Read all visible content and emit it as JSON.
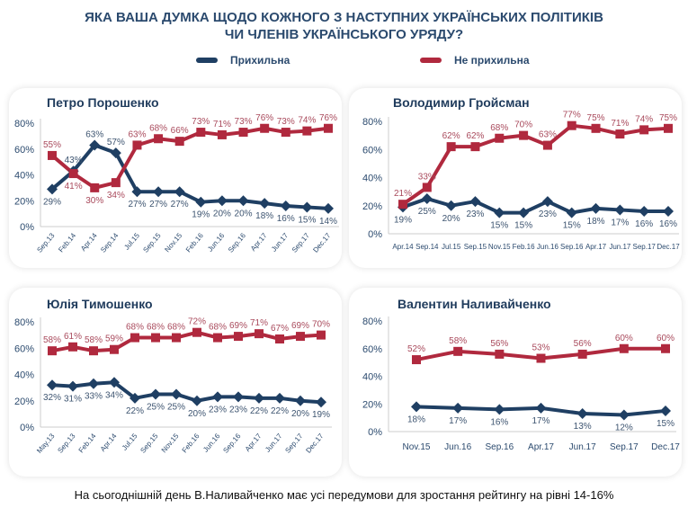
{
  "title": {
    "line1": "ЯКА ВАША ДУМКА ЩОДО КОЖНОГО З НАСТУПНИХ УКРАЇНСЬКИХ ПОЛІТИКІВ",
    "line2": "ЧИ ЧЛЕНІВ УКРАЇНСЬКОГО УРЯДУ?"
  },
  "legend": [
    {
      "label": "Прихильна",
      "color": "#1f3f63"
    },
    {
      "label": "Не прихильна",
      "color": "#b0293e"
    }
  ],
  "footer": "На сьогоднішній день В.Наливайченко має усі передумови для зростання рейтингу на рівні 14-16%",
  "chart_data": [
    {
      "type": "line",
      "title": "Петро Порошенко",
      "ylim": [
        0,
        80
      ],
      "yticks": [
        "0%",
        "20%",
        "40%",
        "60%",
        "80%"
      ],
      "grid": false,
      "categories": [
        "Sep.13",
        "Feb.14",
        "Apr.14",
        "Sep.14",
        "Jul.15",
        "Sep.15",
        "Nov.15",
        "Feb.16",
        "Jun.16",
        "Sep.16",
        "Apr.17",
        "Jun.17",
        "Sep.17",
        "Dec.17"
      ],
      "series": [
        {
          "name": "Прихильна",
          "values": [
            29,
            43,
            63,
            57,
            27,
            27,
            27,
            19,
            20,
            20,
            18,
            16,
            15,
            14
          ]
        },
        {
          "name": "Не прихильна",
          "values": [
            55,
            41,
            30,
            34,
            63,
            68,
            66,
            73,
            71,
            73,
            76,
            73,
            74,
            76
          ]
        }
      ]
    },
    {
      "type": "line",
      "title": "Володимир Гройсман",
      "ylim": [
        0,
        80
      ],
      "yticks": [
        "0%",
        "20%",
        "40%",
        "60%",
        "80%"
      ],
      "grid": false,
      "categories": [
        "Apr.14",
        "Sep.14",
        "Jul.15",
        "Sep.15",
        "Nov.15",
        "Feb.16",
        "Jun.16",
        "Sep.16",
        "Apr.17",
        "Jun.17",
        "Sep.17",
        "Dec.17"
      ],
      "series": [
        {
          "name": "Прихильна",
          "values": [
            19,
            25,
            20,
            23,
            15,
            15,
            23,
            15,
            18,
            17,
            16,
            16
          ]
        },
        {
          "name": "Не прихильна",
          "values": [
            21,
            33,
            62,
            62,
            68,
            70,
            63,
            77,
            75,
            71,
            74,
            75
          ]
        }
      ]
    },
    {
      "type": "line",
      "title": "Юлія Тимошенко",
      "ylim": [
        0,
        80
      ],
      "yticks": [
        "0%",
        "20%",
        "40%",
        "60%",
        "80%"
      ],
      "grid": false,
      "categories": [
        "May.13",
        "Sep.13",
        "Feb.14",
        "Apr.14",
        "Jul.15",
        "Sep.15",
        "Nov.15",
        "Feb.16",
        "Jun.16",
        "Sep.16",
        "Apr.17",
        "Jun.17",
        "Sep.17",
        "Dec.17"
      ],
      "series": [
        {
          "name": "Прихильна",
          "values": [
            32,
            31,
            33,
            34,
            22,
            25,
            25,
            20,
            23,
            23,
            22,
            22,
            20,
            19
          ]
        },
        {
          "name": "Не прихильна",
          "values": [
            58,
            61,
            58,
            59,
            68,
            68,
            68,
            72,
            68,
            69,
            71,
            67,
            69,
            70
          ]
        }
      ]
    },
    {
      "type": "line",
      "title": "Валентин Наливайченко",
      "ylim": [
        0,
        80
      ],
      "yticks": [
        "0%",
        "20%",
        "40%",
        "60%",
        "80%"
      ],
      "grid": false,
      "categories": [
        "Nov.15",
        "Jun.16",
        "Sep.16",
        "Apr.17",
        "Jun.17",
        "Sep.17",
        "Dec.17"
      ],
      "series": [
        {
          "name": "Прихильна",
          "values": [
            18,
            17,
            16,
            17,
            13,
            12,
            15
          ]
        },
        {
          "name": "Не прихильна",
          "values": [
            52,
            58,
            56,
            53,
            56,
            60,
            60
          ]
        }
      ]
    }
  ]
}
